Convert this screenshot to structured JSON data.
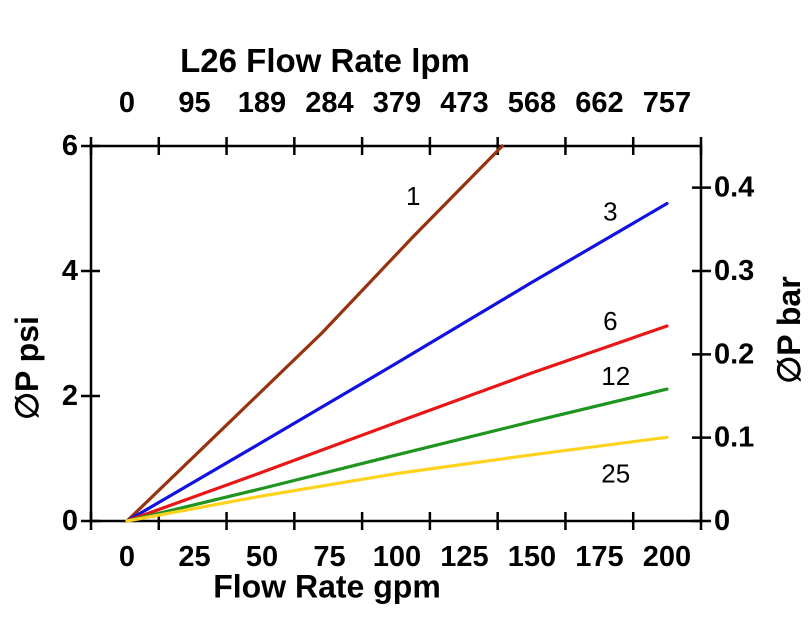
{
  "chart_data": {
    "type": "line",
    "title": "L26 Flow Rate lpm",
    "top_axis": {
      "unit": "lpm",
      "tick_labels": [
        "0",
        "95",
        "189",
        "284",
        "379",
        "473",
        "568",
        "662",
        "757"
      ]
    },
    "bottom_axis": {
      "title": "Flow Rate gpm",
      "unit": "gpm",
      "tick_values": [
        0,
        25,
        50,
        75,
        100,
        125,
        150,
        175,
        200
      ],
      "tick_labels": [
        "0",
        "25",
        "50",
        "75",
        "100",
        "125",
        "150",
        "175",
        "200"
      ]
    },
    "left_axis": {
      "title": "∅P psi",
      "unit": "psi",
      "range": [
        0,
        6
      ],
      "tick_values": [
        0,
        2,
        4,
        6
      ],
      "tick_labels": [
        "0",
        "2",
        "4",
        "6"
      ]
    },
    "right_axis": {
      "title": "∅P bar",
      "unit": "bar",
      "range": [
        0,
        0.45
      ],
      "tick_values": [
        0,
        0.1,
        0.2,
        0.3,
        0.4
      ],
      "tick_labels": [
        "0",
        "0.1",
        "0.2",
        "0.3",
        "0.4"
      ]
    },
    "x_range_gpm": [
      0,
      200
    ],
    "grid": false,
    "axis_color": "#000000",
    "series": [
      {
        "name": "1",
        "color": "#96330e",
        "points_gpm_psi": [
          [
            0,
            0
          ],
          [
            36,
            1.5
          ],
          [
            72,
            3.0
          ],
          [
            106,
            4.55
          ],
          [
            139,
            6.0
          ]
        ],
        "label_at_gpm_psi": [
          106,
          5.2
        ]
      },
      {
        "name": "3",
        "color": "#1212e0",
        "points_gpm_psi": [
          [
            0,
            0
          ],
          [
            50,
            1.26
          ],
          [
            100,
            2.53
          ],
          [
            150,
            3.82
          ],
          [
            200,
            5.08
          ]
        ],
        "label_at_gpm_psi": [
          179,
          4.95
        ]
      },
      {
        "name": "6",
        "color": "#e81616",
        "points_gpm_psi": [
          [
            0,
            0
          ],
          [
            50,
            0.78
          ],
          [
            100,
            1.58
          ],
          [
            150,
            2.37
          ],
          [
            200,
            3.12
          ]
        ],
        "label_at_gpm_psi": [
          179,
          3.2
        ]
      },
      {
        "name": "12",
        "color": "#1f941f",
        "points_gpm_psi": [
          [
            0,
            0
          ],
          [
            50,
            0.52
          ],
          [
            100,
            1.06
          ],
          [
            150,
            1.59
          ],
          [
            200,
            2.11
          ]
        ],
        "label_at_gpm_psi": [
          181,
          2.32
        ]
      },
      {
        "name": "25",
        "color": "#ffd21e",
        "points_gpm_psi": [
          [
            0,
            0
          ],
          [
            50,
            0.4
          ],
          [
            100,
            0.76
          ],
          [
            150,
            1.06
          ],
          [
            200,
            1.34
          ]
        ],
        "label_at_gpm_psi": [
          181,
          0.76
        ]
      }
    ]
  }
}
